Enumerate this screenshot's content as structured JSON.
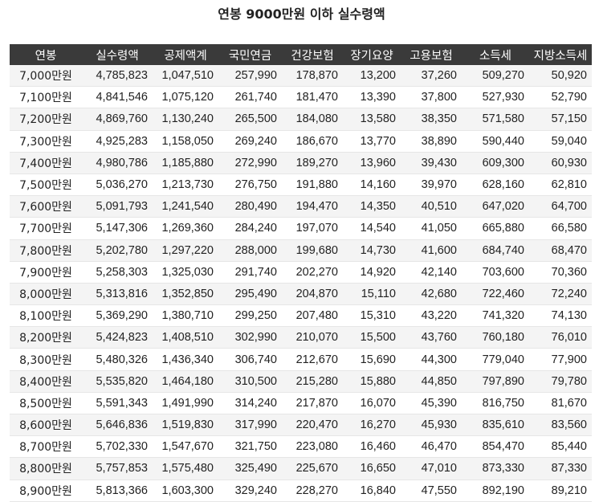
{
  "title": "연봉 9000만원 이하 실수령액",
  "table": {
    "headers": [
      "연봉",
      "실수령액",
      "공제액계",
      "국민연금",
      "건강보험",
      "장기요양",
      "고용보험",
      "소득세",
      "지방소득세"
    ],
    "rows": [
      [
        "7,000만원",
        "4,785,823",
        "1,047,510",
        "257,990",
        "178,870",
        "13,200",
        "37,260",
        "509,270",
        "50,920"
      ],
      [
        "7,100만원",
        "4,841,546",
        "1,075,120",
        "261,740",
        "181,470",
        "13,390",
        "37,800",
        "527,930",
        "52,790"
      ],
      [
        "7,200만원",
        "4,869,760",
        "1,130,240",
        "265,500",
        "184,080",
        "13,580",
        "38,350",
        "571,580",
        "57,150"
      ],
      [
        "7,300만원",
        "4,925,283",
        "1,158,050",
        "269,240",
        "186,670",
        "13,770",
        "38,890",
        "590,440",
        "59,040"
      ],
      [
        "7,400만원",
        "4,980,786",
        "1,185,880",
        "272,990",
        "189,270",
        "13,960",
        "39,430",
        "609,300",
        "60,930"
      ],
      [
        "7,500만원",
        "5,036,270",
        "1,213,730",
        "276,750",
        "191,880",
        "14,160",
        "39,970",
        "628,160",
        "62,810"
      ],
      [
        "7,600만원",
        "5,091,793",
        "1,241,540",
        "280,490",
        "194,470",
        "14,350",
        "40,510",
        "647,020",
        "64,700"
      ],
      [
        "7,700만원",
        "5,147,306",
        "1,269,360",
        "284,240",
        "197,070",
        "14,540",
        "41,050",
        "665,880",
        "66,580"
      ],
      [
        "7,800만원",
        "5,202,780",
        "1,297,220",
        "288,000",
        "199,680",
        "14,730",
        "41,600",
        "684,740",
        "68,470"
      ],
      [
        "7,900만원",
        "5,258,303",
        "1,325,030",
        "291,740",
        "202,270",
        "14,920",
        "42,140",
        "703,600",
        "70,360"
      ],
      [
        "8,000만원",
        "5,313,816",
        "1,352,850",
        "295,490",
        "204,870",
        "15,110",
        "42,680",
        "722,460",
        "72,240"
      ],
      [
        "8,100만원",
        "5,369,290",
        "1,380,710",
        "299,250",
        "207,480",
        "15,310",
        "43,220",
        "741,320",
        "74,130"
      ],
      [
        "8,200만원",
        "5,424,823",
        "1,408,510",
        "302,990",
        "210,070",
        "15,500",
        "43,760",
        "760,180",
        "76,010"
      ],
      [
        "8,300만원",
        "5,480,326",
        "1,436,340",
        "306,740",
        "212,670",
        "15,690",
        "44,300",
        "779,040",
        "77,900"
      ],
      [
        "8,400만원",
        "5,535,820",
        "1,464,180",
        "310,500",
        "215,280",
        "15,880",
        "44,850",
        "797,890",
        "79,780"
      ],
      [
        "8,500만원",
        "5,591,343",
        "1,491,990",
        "314,240",
        "217,870",
        "16,070",
        "45,390",
        "816,750",
        "81,670"
      ],
      [
        "8,600만원",
        "5,646,836",
        "1,519,830",
        "317,990",
        "220,470",
        "16,270",
        "45,930",
        "835,610",
        "83,560"
      ],
      [
        "8,700만원",
        "5,702,330",
        "1,547,670",
        "321,750",
        "223,080",
        "16,460",
        "46,470",
        "854,470",
        "85,440"
      ],
      [
        "8,800만원",
        "5,757,853",
        "1,575,480",
        "325,490",
        "225,670",
        "16,650",
        "47,010",
        "873,330",
        "87,330"
      ],
      [
        "8,900만원",
        "5,813,366",
        "1,603,300",
        "329,240",
        "228,270",
        "16,840",
        "47,550",
        "892,190",
        "89,210"
      ]
    ]
  },
  "colors": {
    "header_bg": "#3a3a3a",
    "header_text": "#ffffff",
    "row_alt_bg": "#f4f4f4",
    "text": "#222222"
  }
}
